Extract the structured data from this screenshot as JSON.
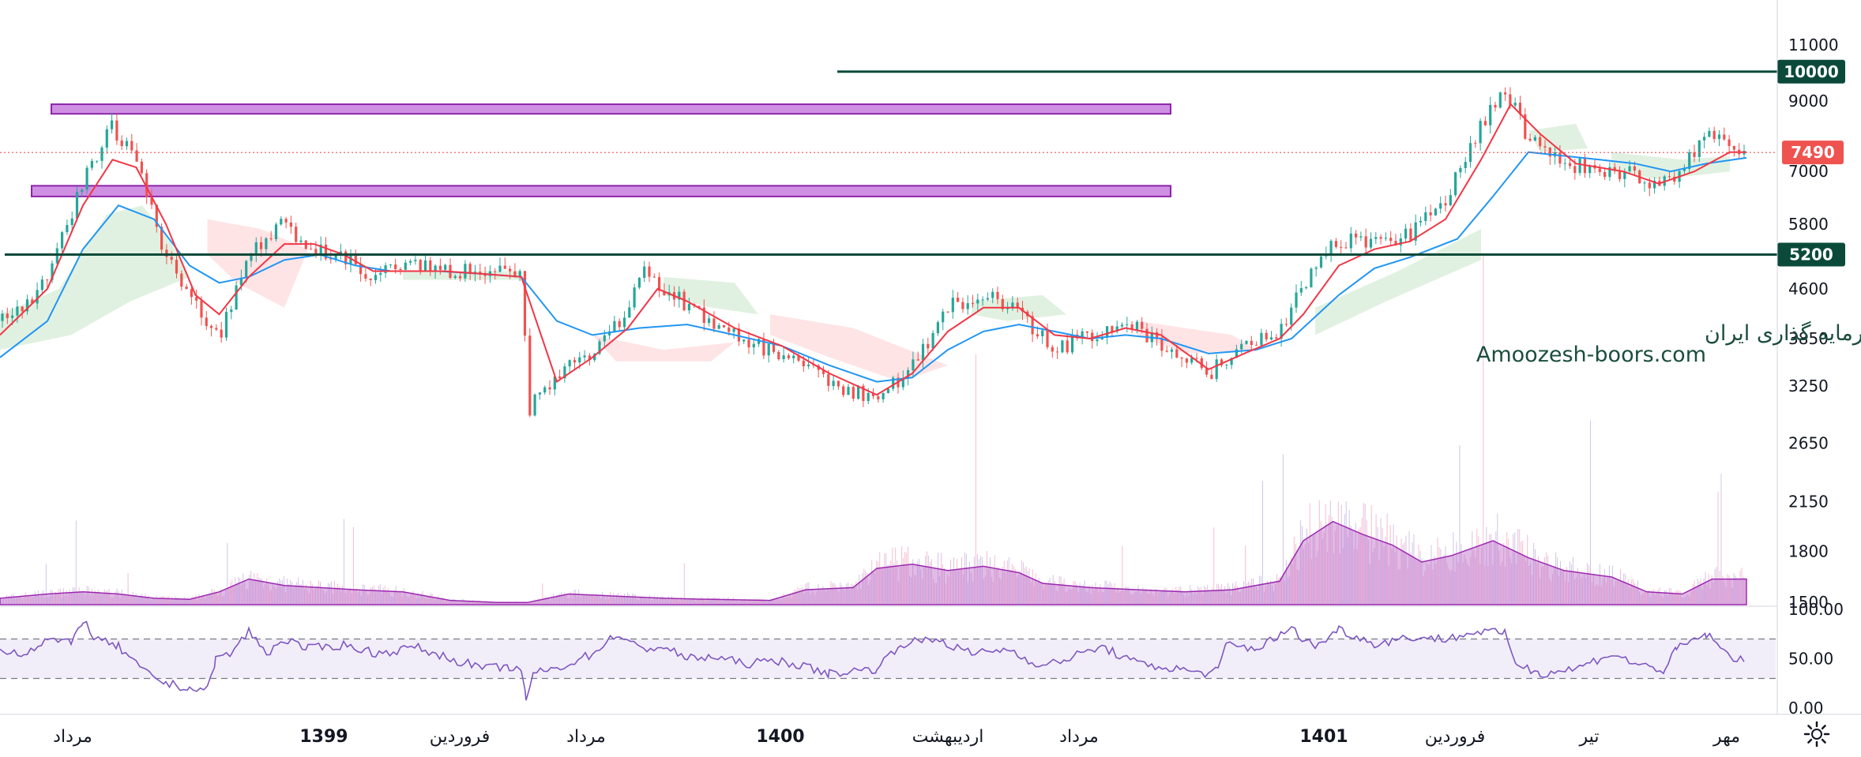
{
  "chart_data": {
    "type": "candlestick",
    "price_axis": {
      "ticks": [
        "11000",
        "9000",
        "7000",
        "5800",
        "4600",
        "3850",
        "3250",
        "2650",
        "2150",
        "1800",
        "1500"
      ],
      "tick_values": [
        11000,
        9000,
        7000,
        5800,
        4600,
        3850,
        3250,
        2650,
        2150,
        1800,
        1500
      ],
      "scale": "log"
    },
    "horizontal_levels": [
      {
        "label": "10000",
        "value": 10000,
        "color": "#0b4a3a"
      },
      {
        "label": "5200",
        "value": 5200,
        "color": "#0b4a3a"
      }
    ],
    "last_price": {
      "label": "7490",
      "value": 7490,
      "color": "#ef5350"
    },
    "zones": [
      {
        "from": 8600,
        "to": 8900,
        "color": "#c77dde"
      },
      {
        "from": 6400,
        "to": 6650,
        "color": "#c77dde"
      }
    ],
    "rsi_axis": {
      "ticks": [
        "100.00",
        "50.00",
        "0.00"
      ],
      "tick_values": [
        100,
        50,
        0
      ],
      "bands": [
        70,
        30
      ]
    },
    "time_axis": [
      "مرداد",
      "1399",
      "فروردین",
      "مرداد",
      "1400",
      "اردیبهشت",
      "مرداد",
      "1401",
      "فروردین",
      "تیر",
      "مهر"
    ],
    "time_axis_bold": [
      false,
      true,
      false,
      false,
      true,
      false,
      false,
      true,
      false,
      false,
      false
    ],
    "price_path": [
      [
        0,
        4100
      ],
      [
        40,
        4700
      ],
      [
        70,
        6800
      ],
      [
        95,
        8200
      ],
      [
        115,
        7200
      ],
      [
        140,
        5200
      ],
      [
        165,
        4300
      ],
      [
        185,
        3900
      ],
      [
        210,
        5200
      ],
      [
        240,
        5800
      ],
      [
        265,
        5300
      ],
      [
        290,
        5200
      ],
      [
        315,
        4800
      ],
      [
        345,
        5000
      ],
      [
        375,
        4900
      ],
      [
        410,
        4900
      ],
      [
        440,
        4850
      ],
      [
        447,
        3000
      ],
      [
        470,
        3400
      ],
      [
        500,
        3700
      ],
      [
        525,
        4100
      ],
      [
        545,
        4900
      ],
      [
        560,
        4600
      ],
      [
        590,
        4200
      ],
      [
        620,
        3900
      ],
      [
        660,
        3600
      ],
      [
        700,
        3300
      ],
      [
        740,
        3100
      ],
      [
        770,
        3500
      ],
      [
        800,
        4300
      ],
      [
        830,
        4500
      ],
      [
        860,
        4200
      ],
      [
        890,
        3700
      ],
      [
        920,
        3900
      ],
      [
        950,
        4100
      ],
      [
        980,
        3800
      ],
      [
        1020,
        3400
      ],
      [
        1050,
        3800
      ],
      [
        1080,
        3900
      ],
      [
        1100,
        4700
      ],
      [
        1130,
        5500
      ],
      [
        1160,
        5400
      ],
      [
        1190,
        5600
      ],
      [
        1220,
        6300
      ],
      [
        1250,
        8200
      ],
      [
        1270,
        9500
      ],
      [
        1290,
        7900
      ],
      [
        1310,
        7300
      ],
      [
        1340,
        7100
      ],
      [
        1370,
        7000
      ],
      [
        1400,
        6600
      ],
      [
        1420,
        7100
      ],
      [
        1440,
        8100
      ],
      [
        1460,
        7600
      ],
      [
        1474,
        7490
      ]
    ],
    "ma_fast": [
      [
        0,
        3900
      ],
      [
        40,
        4600
      ],
      [
        70,
        6200
      ],
      [
        95,
        7300
      ],
      [
        115,
        7100
      ],
      [
        140,
        5800
      ],
      [
        165,
        4500
      ],
      [
        185,
        4200
      ],
      [
        210,
        4800
      ],
      [
        240,
        5400
      ],
      [
        265,
        5400
      ],
      [
        290,
        5200
      ],
      [
        315,
        4900
      ],
      [
        345,
        4900
      ],
      [
        375,
        4900
      ],
      [
        410,
        4850
      ],
      [
        440,
        4800
      ],
      [
        470,
        3300
      ],
      [
        500,
        3600
      ],
      [
        530,
        4000
      ],
      [
        555,
        4600
      ],
      [
        580,
        4400
      ],
      [
        620,
        4000
      ],
      [
        660,
        3750
      ],
      [
        700,
        3400
      ],
      [
        740,
        3150
      ],
      [
        770,
        3400
      ],
      [
        800,
        3950
      ],
      [
        830,
        4300
      ],
      [
        860,
        4300
      ],
      [
        890,
        3900
      ],
      [
        920,
        3850
      ],
      [
        950,
        4000
      ],
      [
        980,
        3900
      ],
      [
        1020,
        3450
      ],
      [
        1050,
        3650
      ],
      [
        1080,
        3850
      ],
      [
        1100,
        4200
      ],
      [
        1130,
        5000
      ],
      [
        1160,
        5300
      ],
      [
        1190,
        5450
      ],
      [
        1220,
        5900
      ],
      [
        1250,
        7300
      ],
      [
        1275,
        8900
      ],
      [
        1300,
        8000
      ],
      [
        1330,
        7200
      ],
      [
        1370,
        7000
      ],
      [
        1400,
        6700
      ],
      [
        1430,
        7000
      ],
      [
        1460,
        7500
      ],
      [
        1474,
        7500
      ]
    ],
    "ma_slow": [
      [
        0,
        3600
      ],
      [
        40,
        4100
      ],
      [
        70,
        5300
      ],
      [
        100,
        6200
      ],
      [
        130,
        5900
      ],
      [
        160,
        5000
      ],
      [
        185,
        4700
      ],
      [
        210,
        4800
      ],
      [
        240,
        5100
      ],
      [
        270,
        5200
      ],
      [
        300,
        5000
      ],
      [
        330,
        4900
      ],
      [
        370,
        4900
      ],
      [
        410,
        4850
      ],
      [
        440,
        4800
      ],
      [
        470,
        4100
      ],
      [
        500,
        3900
      ],
      [
        540,
        4000
      ],
      [
        580,
        4050
      ],
      [
        620,
        3900
      ],
      [
        660,
        3750
      ],
      [
        700,
        3500
      ],
      [
        740,
        3300
      ],
      [
        770,
        3350
      ],
      [
        800,
        3700
      ],
      [
        830,
        3950
      ],
      [
        860,
        4050
      ],
      [
        890,
        3950
      ],
      [
        920,
        3850
      ],
      [
        950,
        3900
      ],
      [
        980,
        3850
      ],
      [
        1020,
        3650
      ],
      [
        1060,
        3700
      ],
      [
        1090,
        3850
      ],
      [
        1130,
        4500
      ],
      [
        1160,
        4950
      ],
      [
        1190,
        5150
      ],
      [
        1230,
        5500
      ],
      [
        1260,
        6400
      ],
      [
        1290,
        7500
      ],
      [
        1320,
        7400
      ],
      [
        1350,
        7300
      ],
      [
        1380,
        7200
      ],
      [
        1410,
        7000
      ],
      [
        1440,
        7200
      ],
      [
        1474,
        7350
      ]
    ],
    "cloud_segments": [
      {
        "color": "#c8e6c9",
        "pts": [
          [
            0,
            4200
          ],
          [
            50,
            4600
          ],
          [
            90,
            6000
          ],
          [
            120,
            6200
          ],
          [
            140,
            5600
          ],
          [
            160,
            4800
          ],
          [
            110,
            4400
          ],
          [
            60,
            3900
          ],
          [
            0,
            3700
          ]
        ]
      },
      {
        "color": "#ffcdd2",
        "pts": [
          [
            175,
            5900
          ],
          [
            220,
            5700
          ],
          [
            260,
            5300
          ],
          [
            240,
            4300
          ],
          [
            200,
            4700
          ],
          [
            175,
            5200
          ]
        ]
      },
      {
        "color": "#c8e6c9",
        "pts": [
          [
            340,
            4900
          ],
          [
            440,
            4900
          ],
          [
            440,
            4750
          ],
          [
            340,
            4750
          ]
        ]
      },
      {
        "color": "#ffcdd2",
        "pts": [
          [
            500,
            3900
          ],
          [
            560,
            3700
          ],
          [
            620,
            3800
          ],
          [
            600,
            3550
          ],
          [
            520,
            3550
          ]
        ]
      },
      {
        "color": "#c8e6c9",
        "pts": [
          [
            560,
            4800
          ],
          [
            620,
            4700
          ],
          [
            640,
            4200
          ],
          [
            600,
            4300
          ],
          [
            560,
            4500
          ]
        ]
      },
      {
        "color": "#ffcdd2",
        "pts": [
          [
            650,
            4200
          ],
          [
            720,
            4000
          ],
          [
            800,
            3500
          ],
          [
            760,
            3300
          ],
          [
            700,
            3600
          ],
          [
            650,
            3900
          ]
        ]
      },
      {
        "color": "#c8e6c9",
        "pts": [
          [
            820,
            4400
          ],
          [
            880,
            4500
          ],
          [
            900,
            4200
          ],
          [
            850,
            4100
          ],
          [
            820,
            4200
          ]
        ]
      },
      {
        "color": "#ffcdd2",
        "pts": [
          [
            960,
            4100
          ],
          [
            1040,
            3900
          ],
          [
            1060,
            3700
          ],
          [
            1000,
            3650
          ],
          [
            960,
            3900
          ]
        ]
      },
      {
        "color": "#c8e6c9",
        "pts": [
          [
            1110,
            4300
          ],
          [
            1180,
            4900
          ],
          [
            1250,
            5700
          ],
          [
            1250,
            5100
          ],
          [
            1170,
            4400
          ],
          [
            1110,
            3900
          ]
        ]
      },
      {
        "color": "#c8e6c9",
        "pts": [
          [
            1290,
            8100
          ],
          [
            1330,
            8300
          ],
          [
            1340,
            7600
          ],
          [
            1300,
            7500
          ]
        ]
      },
      {
        "color": "#c8e6c9",
        "pts": [
          [
            1360,
            7500
          ],
          [
            1420,
            7300
          ],
          [
            1460,
            7400
          ],
          [
            1460,
            7000
          ],
          [
            1400,
            6800
          ],
          [
            1360,
            7000
          ]
        ]
      }
    ],
    "volume_ma": [
      [
        0,
        6
      ],
      [
        40,
        10
      ],
      [
        70,
        12
      ],
      [
        100,
        10
      ],
      [
        130,
        6
      ],
      [
        160,
        5
      ],
      [
        185,
        12
      ],
      [
        210,
        24
      ],
      [
        240,
        18
      ],
      [
        270,
        16
      ],
      [
        300,
        14
      ],
      [
        340,
        12
      ],
      [
        380,
        4
      ],
      [
        420,
        2
      ],
      [
        445,
        2
      ],
      [
        480,
        10
      ],
      [
        520,
        8
      ],
      [
        560,
        6
      ],
      [
        600,
        5
      ],
      [
        650,
        4
      ],
      [
        680,
        14
      ],
      [
        720,
        16
      ],
      [
        740,
        34
      ],
      [
        770,
        38
      ],
      [
        800,
        32
      ],
      [
        830,
        36
      ],
      [
        860,
        30
      ],
      [
        880,
        20
      ],
      [
        920,
        16
      ],
      [
        960,
        14
      ],
      [
        1000,
        12
      ],
      [
        1040,
        14
      ],
      [
        1080,
        22
      ],
      [
        1100,
        60
      ],
      [
        1125,
        78
      ],
      [
        1150,
        66
      ],
      [
        1175,
        56
      ],
      [
        1200,
        40
      ],
      [
        1225,
        46
      ],
      [
        1260,
        60
      ],
      [
        1290,
        44
      ],
      [
        1320,
        32
      ],
      [
        1360,
        26
      ],
      [
        1390,
        12
      ],
      [
        1420,
        10
      ],
      [
        1445,
        24
      ],
      [
        1474,
        24
      ]
    ],
    "rsi": [
      [
        0,
        60
      ],
      [
        20,
        55
      ],
      [
        40,
        70
      ],
      [
        60,
        65
      ],
      [
        70,
        90
      ],
      [
        80,
        70
      ],
      [
        100,
        62
      ],
      [
        120,
        38
      ],
      [
        140,
        25
      ],
      [
        160,
        20
      ],
      [
        175,
        18
      ],
      [
        182,
        50
      ],
      [
        195,
        55
      ],
      [
        210,
        78
      ],
      [
        225,
        55
      ],
      [
        240,
        70
      ],
      [
        260,
        60
      ],
      [
        290,
        64
      ],
      [
        320,
        55
      ],
      [
        350,
        62
      ],
      [
        380,
        50
      ],
      [
        410,
        40
      ],
      [
        430,
        42
      ],
      [
        440,
        35
      ],
      [
        444,
        10
      ],
      [
        450,
        35
      ],
      [
        470,
        40
      ],
      [
        500,
        55
      ],
      [
        520,
        75
      ],
      [
        540,
        60
      ],
      [
        560,
        62
      ],
      [
        580,
        50
      ],
      [
        600,
        52
      ],
      [
        630,
        45
      ],
      [
        660,
        48
      ],
      [
        700,
        35
      ],
      [
        740,
        40
      ],
      [
        760,
        65
      ],
      [
        790,
        70
      ],
      [
        820,
        55
      ],
      [
        850,
        60
      ],
      [
        880,
        42
      ],
      [
        900,
        50
      ],
      [
        930,
        62
      ],
      [
        960,
        45
      ],
      [
        990,
        40
      ],
      [
        1020,
        35
      ],
      [
        1028,
        38
      ],
      [
        1035,
        65
      ],
      [
        1060,
        60
      ],
      [
        1090,
        80
      ],
      [
        1110,
        62
      ],
      [
        1130,
        80
      ],
      [
        1160,
        65
      ],
      [
        1190,
        72
      ],
      [
        1220,
        70
      ],
      [
        1250,
        78
      ],
      [
        1270,
        75
      ],
      [
        1280,
        45
      ],
      [
        1300,
        35
      ],
      [
        1330,
        40
      ],
      [
        1360,
        55
      ],
      [
        1380,
        45
      ],
      [
        1405,
        38
      ],
      [
        1415,
        60
      ],
      [
        1440,
        75
      ],
      [
        1460,
        52
      ],
      [
        1474,
        50
      ]
    ]
  },
  "watermark": {
    "line1": "انجمن خبرگان سرمایه گذاری ایران",
    "line2": "Amoozesh-boors.com"
  },
  "toolbar": {
    "settings_icon": "gear-icon"
  }
}
